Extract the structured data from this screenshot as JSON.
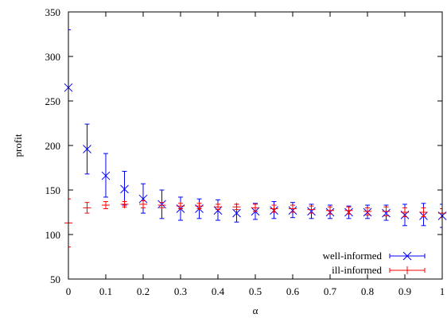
{
  "chart_data": {
    "type": "scatter",
    "xlabel": "α",
    "ylabel": "profit",
    "xlim": [
      0,
      1
    ],
    "ylim": [
      50,
      350
    ],
    "x_ticks": [
      "0",
      "0.1",
      "0.2",
      "0.3",
      "0.4",
      "0.5",
      "0.6",
      "0.7",
      "0.8",
      "0.9",
      "1"
    ],
    "y_ticks": [
      "50",
      "100",
      "150",
      "200",
      "250",
      "300",
      "350"
    ],
    "legend_position": "bottom-right",
    "grid": false,
    "x": [
      0,
      0.05,
      0.1,
      0.15,
      0.2,
      0.25,
      0.3,
      0.35,
      0.4,
      0.45,
      0.5,
      0.55,
      0.6,
      0.65,
      0.7,
      0.75,
      0.8,
      0.85,
      0.9,
      0.95,
      1.0
    ],
    "series": [
      {
        "name": "well-informed",
        "color": "#0000ff",
        "marker": "x",
        "values": [
          265,
          196,
          166,
          151,
          140,
          134,
          129,
          129,
          127,
          124,
          126,
          127,
          127,
          126,
          125,
          125,
          125,
          124,
          122,
          121,
          121
        ],
        "err_low": [
          200,
          168,
          142,
          133,
          124,
          118,
          116,
          118,
          116,
          114,
          117,
          118,
          119,
          118,
          118,
          118,
          118,
          116,
          110,
          110,
          108
        ],
        "err_high": [
          330,
          224,
          191,
          171,
          157,
          150,
          142,
          140,
          139,
          134,
          135,
          137,
          136,
          134,
          133,
          132,
          133,
          133,
          134,
          135,
          134
        ]
      },
      {
        "name": "ill-informed",
        "color": "#ff0000",
        "marker": "+",
        "values": [
          113,
          130,
          133,
          134,
          134,
          133,
          132,
          132,
          131,
          131,
          130,
          129,
          129,
          128,
          127,
          127,
          126,
          126,
          125,
          125,
          124
        ],
        "err_low": [
          86,
          124,
          129,
          131,
          130,
          130,
          129,
          129,
          128,
          128,
          126,
          125,
          125,
          124,
          123,
          123,
          122,
          121,
          120,
          120,
          119
        ],
        "err_high": [
          140,
          136,
          137,
          137,
          138,
          136,
          135,
          135,
          134,
          134,
          134,
          133,
          133,
          132,
          131,
          131,
          130,
          131,
          130,
          130,
          129
        ]
      }
    ]
  }
}
